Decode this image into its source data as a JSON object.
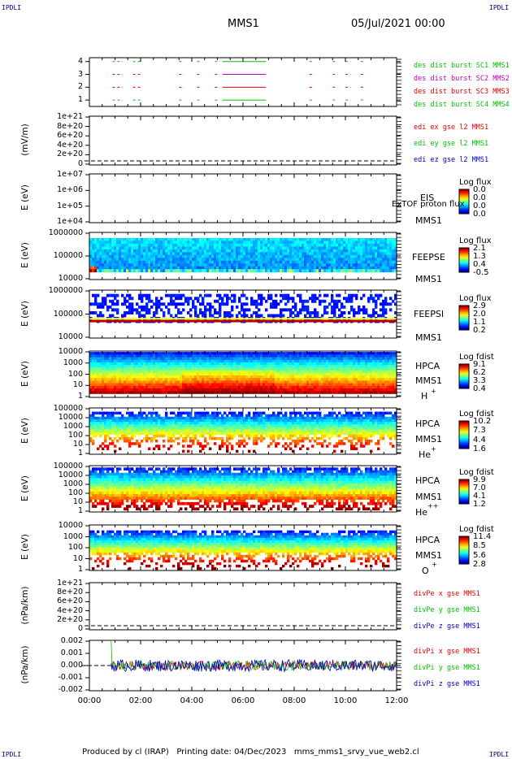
{
  "page": {
    "corner_label": "IPDLI",
    "title": "MMS1",
    "date": "05/Jul/2021 00:00",
    "footer": "Produced by cl (IRAP)   Printing date: 04/Dec/2023   mms_mms1_srvy_vue_web2.cl"
  },
  "colors": {
    "red": "#e00000",
    "green": "#00c000",
    "blue": "#0000c0",
    "magenta": "#c000c0"
  },
  "chart_data": [
    {
      "type": "line",
      "panel": "burst-availability",
      "ylim": [
        0.5,
        4.3
      ],
      "yticks": [
        "4",
        "3",
        "2",
        "1"
      ],
      "series": [
        {
          "name": "des dist burst SC1 MMS1",
          "color": "#00c000",
          "y": 4
        },
        {
          "name": "des dist burst SC2 MMS2",
          "color": "#c000c0",
          "y": 3
        },
        {
          "name": "des dist burst SC3 MMS3",
          "color": "#e00000",
          "y": 2
        },
        {
          "name": "des dist burst SC4 MMS4",
          "color": "#00c000",
          "y": 1
        }
      ],
      "burst_intervals_hours": [
        [
          0.9,
          1.3
        ],
        [
          1.7,
          2.0
        ],
        [
          3.5,
          3.7
        ],
        [
          4.2,
          4.3
        ],
        [
          4.9,
          5.1
        ],
        [
          5.2,
          6.9
        ],
        [
          8.6,
          8.8
        ],
        [
          9.5,
          9.6
        ],
        [
          10.0,
          10.2
        ],
        [
          10.6,
          10.7
        ]
      ]
    },
    {
      "type": "line",
      "panel": "edi-e-field",
      "ylabel": "(mV/m)",
      "yticks": [
        "1e+21",
        "8e+20",
        "6e+20",
        "4e+20",
        "2e+20",
        "0"
      ],
      "series": [
        {
          "name": "edi ex gse l2 MMS1",
          "color": "#e00000"
        },
        {
          "name": "edi ey gse l2 MMS1",
          "color": "#00c000"
        },
        {
          "name": "edi ez gse l2 MMS1",
          "color": "#0000c0"
        }
      ]
    },
    {
      "type": "heatmap",
      "panel": "eis",
      "ylabel": "E (eV)",
      "yticks": [
        "1e+07",
        "1e+06",
        "1e+05",
        "1e+04"
      ],
      "labels": [
        "EIS",
        "MMS1"
      ],
      "overlay": "ExTOF proton flux",
      "colorbar": {
        "title": "Log flux",
        "ticks": [
          "0.0",
          "0.0",
          "0.0",
          "0.0"
        ]
      }
    },
    {
      "type": "heatmap",
      "panel": "feeps-e",
      "ylabel": "E (eV)",
      "yticks": [
        "1000000",
        "100000",
        "10000"
      ],
      "labels": [
        "FEEPSE",
        "MMS1"
      ],
      "colorbar": {
        "title": "Log flux",
        "ticks": [
          "2.1",
          "1.3",
          "0.4",
          "-0.5"
        ]
      }
    },
    {
      "type": "heatmap",
      "panel": "feeps-i",
      "ylabel": "E (eV)",
      "yticks": [
        "1000000",
        "100000",
        "10000"
      ],
      "labels": [
        "FEEPSI",
        "MMS1"
      ],
      "colorbar": {
        "title": "Log flux",
        "ticks": [
          "2.9",
          "2.0",
          "1.1",
          "0.2"
        ]
      }
    },
    {
      "type": "heatmap",
      "panel": "hpca-h",
      "ylabel": "E (eV)",
      "yticks": [
        "10000",
        "1000",
        "100",
        "10",
        "1"
      ],
      "labels": [
        "HPCA",
        "MMS1",
        "H",
        "+"
      ],
      "colorbar": {
        "title": "Log fdist",
        "ticks": [
          "9.1",
          "6.2",
          "3.3",
          "0.4"
        ]
      }
    },
    {
      "type": "heatmap",
      "panel": "hpca-he",
      "ylabel": "E (eV)",
      "yticks": [
        "100000",
        "10000",
        "1000",
        "100",
        "10",
        "1"
      ],
      "labels": [
        "HPCA",
        "MMS1",
        "He",
        "+"
      ],
      "colorbar": {
        "title": "Log fdist",
        "ticks": [
          "10.2",
          "7.3",
          "4.4",
          "1.6"
        ]
      }
    },
    {
      "type": "heatmap",
      "panel": "hpca-hepp",
      "ylabel": "E (eV)",
      "yticks": [
        "100000",
        "10000",
        "1000",
        "100",
        "10",
        "1"
      ],
      "labels": [
        "HPCA",
        "MMS1",
        "He",
        "++"
      ],
      "colorbar": {
        "title": "Log fdist",
        "ticks": [
          "9.9",
          "7.0",
          "4.1",
          "1.2"
        ]
      }
    },
    {
      "type": "heatmap",
      "panel": "hpca-o",
      "ylabel": "E (eV)",
      "yticks": [
        "10000",
        "1000",
        "100",
        "10",
        "1"
      ],
      "labels": [
        "HPCA",
        "MMS1",
        "O",
        "+"
      ],
      "colorbar": {
        "title": "Log fdist",
        "ticks": [
          "11.4",
          "8.5",
          "5.6",
          "2.8"
        ]
      }
    },
    {
      "type": "line",
      "panel": "div-pe",
      "ylabel": "(nPa/km)",
      "yticks": [
        "1e+21",
        "8e+20",
        "6e+20",
        "4e+20",
        "2e+20",
        "0"
      ],
      "series": [
        {
          "name": "divPe x gse MMS1",
          "color": "#e00000"
        },
        {
          "name": "divPe y gse MMS1",
          "color": "#00c000"
        },
        {
          "name": "divPe z gse MMS1",
          "color": "#0000c0"
        }
      ]
    },
    {
      "type": "line",
      "panel": "div-pi",
      "ylabel": "(nPa/km)",
      "yticks": [
        "0.002",
        "0.001",
        "0.000",
        "-0.001",
        "-0.002"
      ],
      "ylim": [
        -0.0025,
        0.0025
      ],
      "series": [
        {
          "name": "divPi x gse MMS1",
          "color": "#e00000"
        },
        {
          "name": "divPi y gse MMS1",
          "color": "#00c000"
        },
        {
          "name": "divPi z gse MMS1",
          "color": "#0000c0"
        }
      ]
    }
  ],
  "xaxis": {
    "ticks": [
      "00:00",
      "02:00",
      "04:00",
      "06:00",
      "08:00",
      "10:00",
      "12:00"
    ],
    "xlim_hours": [
      0,
      12
    ]
  }
}
